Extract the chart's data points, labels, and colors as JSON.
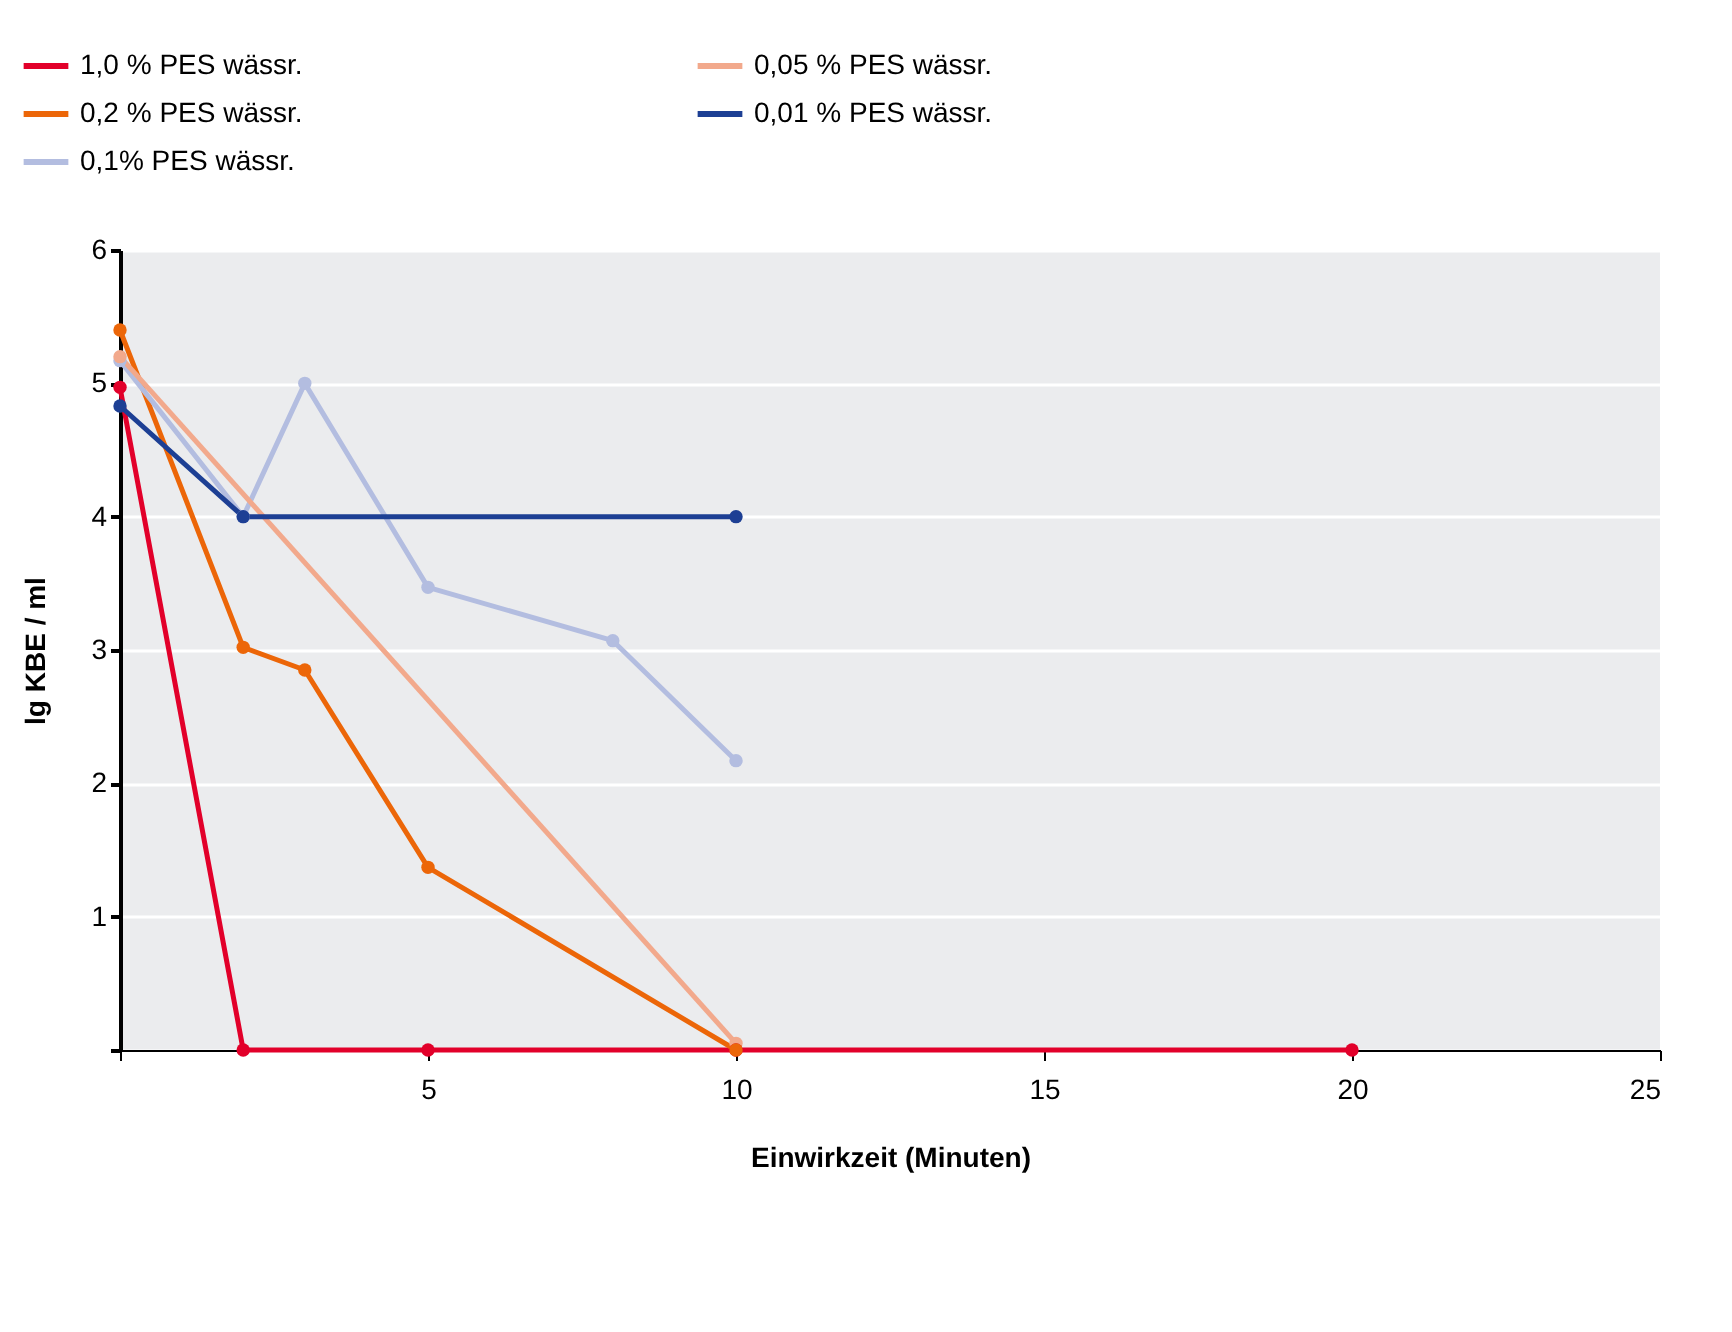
{
  "chart_data": {
    "type": "line",
    "xlabel": "Einwirkzeit (Minuten)",
    "ylabel": "lg KBE / ml",
    "xlim": [
      0,
      25
    ],
    "xticks": [
      {
        "value": 0,
        "label": null
      },
      5,
      10,
      15,
      20,
      25
    ],
    "ylim": [
      0,
      6
    ],
    "yticks": [
      {
        "value": 0,
        "label": null
      },
      1,
      2,
      3,
      4,
      5,
      6
    ],
    "grid": "y",
    "legend": "top left",
    "marker": "circle",
    "line_style": "solid",
    "series": [
      {
        "name": "1,0 % PES wässr.",
        "color": "#e2002a",
        "x": [
          0,
          2,
          5,
          10,
          20
        ],
        "values": [
          4.97,
          0,
          0,
          0,
          0
        ]
      },
      {
        "name": "0,2 % PES wässr.",
        "color": "#ec6608",
        "x": [
          0,
          2,
          3,
          5,
          10
        ],
        "values": [
          5.4,
          3.02,
          2.85,
          1.37,
          0
        ]
      },
      {
        "name": "0,1% PES wässr.",
        "color": "#b3bde0",
        "x": [
          0,
          2,
          3,
          5,
          8,
          10
        ],
        "values": [
          5.17,
          4.0,
          5.0,
          3.47,
          3.07,
          2.17
        ]
      },
      {
        "name": "0,05 % PES wässr.",
        "color": "#f2a98c",
        "x": [
          0,
          10
        ],
        "values": [
          5.2,
          0.05
        ]
      },
      {
        "name": "0,01 % PES wässr.",
        "color": "#1d3f94",
        "x": [
          0,
          2,
          10
        ],
        "values": [
          4.83,
          4.0,
          4.0
        ]
      }
    ]
  }
}
